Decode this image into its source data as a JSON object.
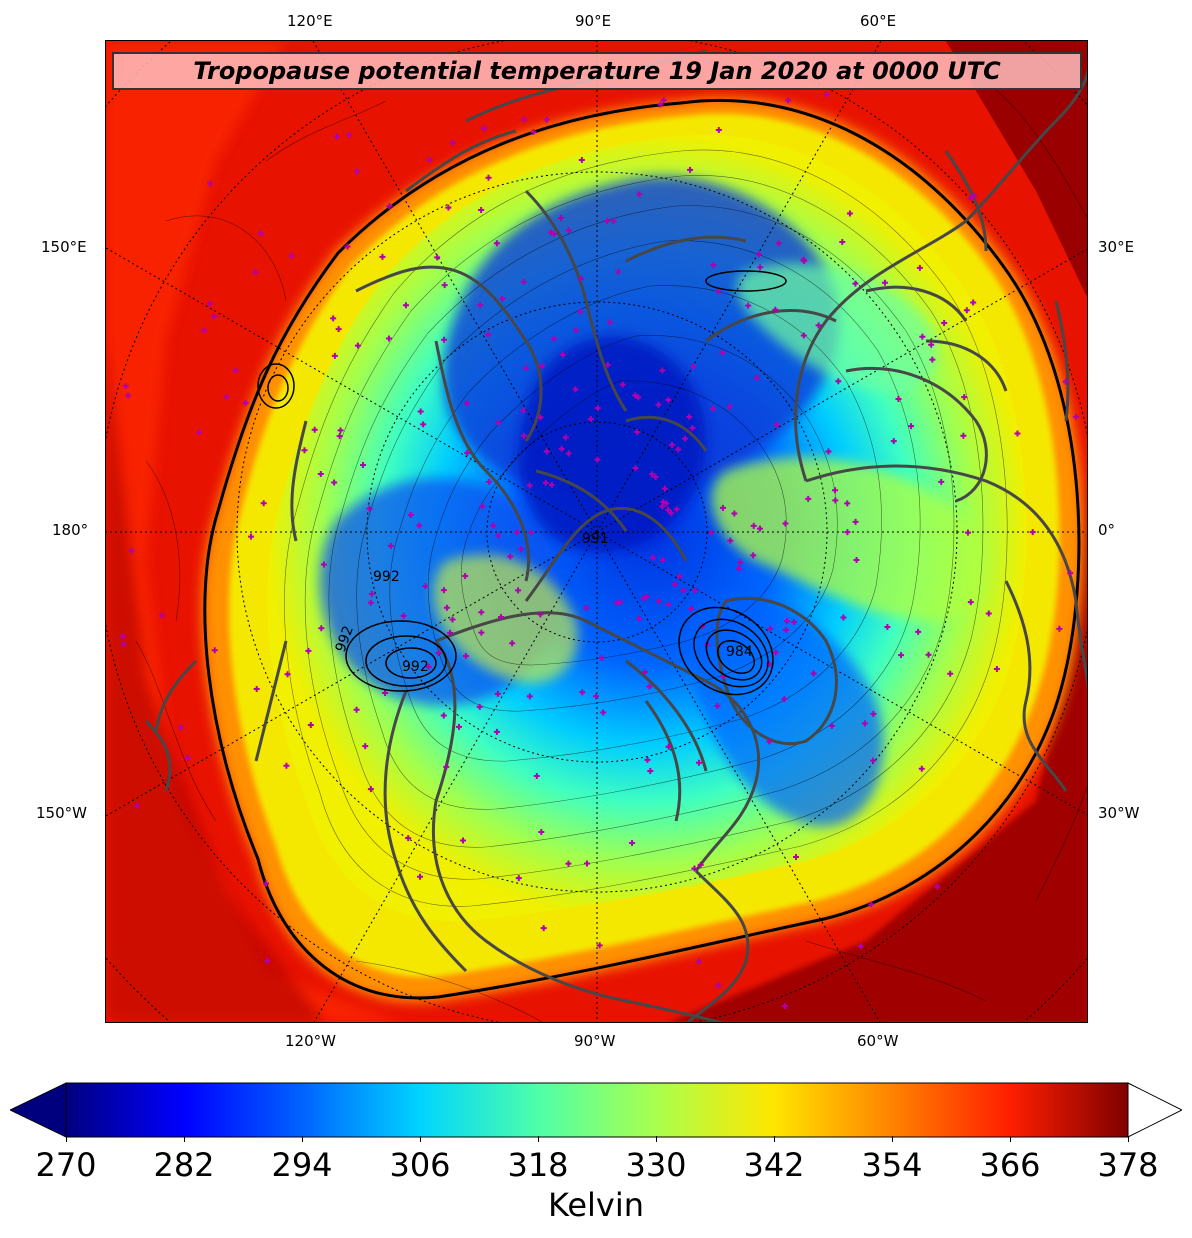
{
  "title": "Tropopause potential temperature 19 Jan 2020 at 0000 UTC",
  "longitude_labels": {
    "top": [
      "120°E",
      "90°E",
      "60°E"
    ],
    "bottom": [
      "120°W",
      "90°W",
      "60°W"
    ],
    "left": [
      "150°E",
      "180°",
      "150°W"
    ],
    "right": [
      "30°E",
      "0°",
      "30°W"
    ]
  },
  "contour_labels": [
    "991",
    "992",
    "992",
    "992",
    "984"
  ],
  "colorbar": {
    "label": "Kelvin",
    "ticks": [
      "270",
      "282",
      "294",
      "306",
      "318",
      "330",
      "342",
      "354",
      "366",
      "378"
    ],
    "min": 270,
    "max": 378,
    "colors": [
      "#00007f",
      "#0000ff",
      "#0063ff",
      "#00d4ff",
      "#4effa9",
      "#a9ff4e",
      "#ffe600",
      "#ff8200",
      "#ff1e00",
      "#7f0000"
    ]
  }
}
